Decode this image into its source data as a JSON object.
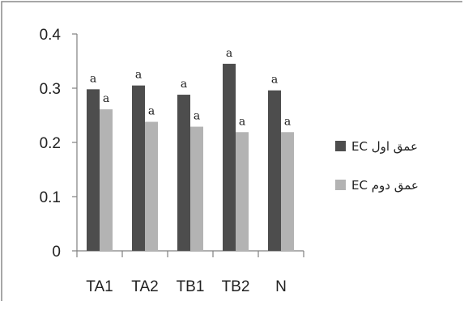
{
  "chart_data": {
    "type": "bar",
    "categories": [
      "TA1",
      "TA2",
      "TB1",
      "TB2",
      "N"
    ],
    "series": [
      {
        "name": "عمق اول EC",
        "color": "#4d4d4d",
        "values": [
          0.298,
          0.305,
          0.288,
          0.345,
          0.296
        ],
        "labels": [
          "a",
          "a",
          "a",
          "a",
          "a"
        ]
      },
      {
        "name": "عمق دوم EC",
        "color": "#b3b3b3",
        "values": [
          0.261,
          0.238,
          0.229,
          0.219,
          0.219
        ],
        "labels": [
          "a",
          "a",
          "a",
          "a",
          "a"
        ]
      }
    ],
    "yticks": [
      "0",
      "0.1",
      "0.2",
      "0.3",
      "0.4"
    ],
    "ylim": [
      0,
      0.4
    ],
    "grid": false,
    "legend": "right"
  }
}
